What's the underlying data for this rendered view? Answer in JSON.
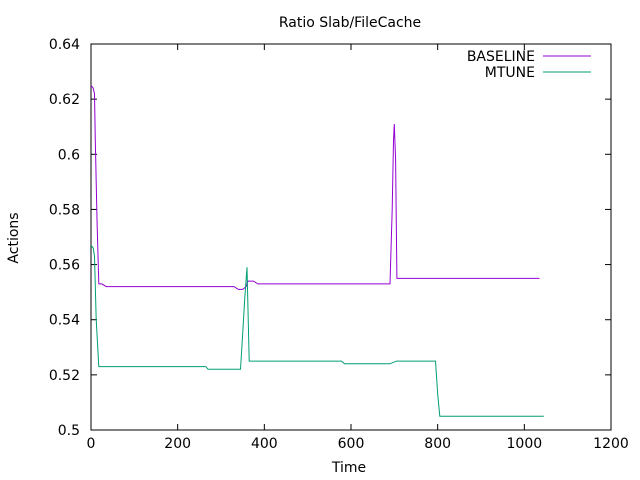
{
  "chart_data": {
    "type": "line",
    "title": "Ratio Slab/FileCache",
    "xlabel": "Time",
    "ylabel": "Actions",
    "xlim": [
      0,
      1200
    ],
    "ylim": [
      0.5,
      0.64
    ],
    "x_ticks": [
      0,
      200,
      400,
      600,
      800,
      1000,
      1200
    ],
    "x_tick_labels": [
      "0",
      "200",
      "400",
      "600",
      "800",
      "1000",
      "1200"
    ],
    "y_ticks": [
      0.5,
      0.52,
      0.54,
      0.56,
      0.58,
      0.6,
      0.62,
      0.64
    ],
    "y_tick_labels": [
      "0.5",
      "0.52",
      "0.54",
      "0.56",
      "0.58",
      "0.6",
      "0.62",
      "0.64"
    ],
    "grid": false,
    "legend_position": "top-right",
    "series": [
      {
        "name": "BASELINE",
        "color": "#9400d3",
        "points": [
          [
            0,
            0.625
          ],
          [
            5,
            0.624
          ],
          [
            8,
            0.622
          ],
          [
            10,
            0.605
          ],
          [
            14,
            0.575
          ],
          [
            18,
            0.553
          ],
          [
            25,
            0.553
          ],
          [
            35,
            0.552
          ],
          [
            100,
            0.552
          ],
          [
            200,
            0.552
          ],
          [
            300,
            0.552
          ],
          [
            330,
            0.552
          ],
          [
            340,
            0.551
          ],
          [
            350,
            0.551
          ],
          [
            358,
            0.552
          ],
          [
            362,
            0.554
          ],
          [
            375,
            0.554
          ],
          [
            385,
            0.553
          ],
          [
            400,
            0.553
          ],
          [
            500,
            0.553
          ],
          [
            600,
            0.553
          ],
          [
            690,
            0.553
          ],
          [
            695,
            0.58
          ],
          [
            698,
            0.605
          ],
          [
            700,
            0.611
          ],
          [
            703,
            0.598
          ],
          [
            706,
            0.555
          ],
          [
            715,
            0.555
          ],
          [
            800,
            0.555
          ],
          [
            900,
            0.555
          ],
          [
            1000,
            0.555
          ],
          [
            1035,
            0.555
          ]
        ]
      },
      {
        "name": "MTUNE",
        "color": "#009e73",
        "points": [
          [
            0,
            0.567
          ],
          [
            5,
            0.566
          ],
          [
            8,
            0.563
          ],
          [
            12,
            0.54
          ],
          [
            18,
            0.523
          ],
          [
            50,
            0.523
          ],
          [
            100,
            0.523
          ],
          [
            200,
            0.523
          ],
          [
            265,
            0.523
          ],
          [
            270,
            0.522
          ],
          [
            300,
            0.522
          ],
          [
            345,
            0.522
          ],
          [
            350,
            0.535
          ],
          [
            355,
            0.548
          ],
          [
            360,
            0.559
          ],
          [
            365,
            0.525
          ],
          [
            400,
            0.525
          ],
          [
            500,
            0.525
          ],
          [
            578,
            0.525
          ],
          [
            585,
            0.524
          ],
          [
            600,
            0.524
          ],
          [
            690,
            0.524
          ],
          [
            705,
            0.525
          ],
          [
            750,
            0.525
          ],
          [
            795,
            0.525
          ],
          [
            800,
            0.513
          ],
          [
            805,
            0.505
          ],
          [
            900,
            0.505
          ],
          [
            1000,
            0.505
          ],
          [
            1045,
            0.505
          ]
        ]
      }
    ]
  }
}
